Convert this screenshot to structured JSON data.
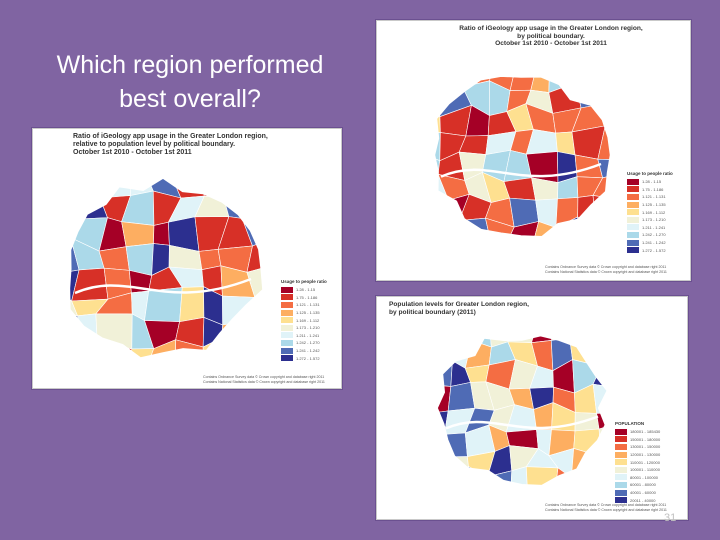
{
  "slide": {
    "title": "Which region performed best overall?",
    "background": "#8064a2",
    "number": "31"
  },
  "figures": [
    {
      "id": "left",
      "title": "Ratio of iGeology app usage in the Greater London region,\nrelative to population level by political boundary.\nOctober 1st 2010 - October 1st 2011",
      "legend_title": "Usage to people ratio",
      "legend": [
        {
          "label": "1.28 - 1.15",
          "color": "#a50026"
        },
        {
          "label": "1.75 - 1.186",
          "color": "#d73027"
        },
        {
          "label": "1.121 - 1.131",
          "color": "#f46d43"
        },
        {
          "label": "1.125 - 1.135",
          "color": "#fdae61"
        },
        {
          "label": "1.169 - 1.112",
          "color": "#fee090"
        },
        {
          "label": "1.173 - 1.210",
          "color": "#f1f1d8"
        },
        {
          "label": "1.211 - 1.241",
          "color": "#e0f3f8"
        },
        {
          "label": "1.242 - 1.270",
          "color": "#abd9e9"
        },
        {
          "label": "1.241 - 1.242",
          "color": "#4f6bb5"
        },
        {
          "label": "1.272 - 1.572",
          "color": "#2c2f8f"
        }
      ],
      "credits": "Contains Ordnance Survey data © Crown copyright and database right 2011\nContains National Statistics data © Crown copyright and database right 2011"
    },
    {
      "id": "top-right",
      "title": "Ratio of iGeology app usage in the Greater London region,\nby political boundary.\nOctober 1st 2010 - October 1st 2011",
      "legend_title": "Usage to people ratio",
      "legend": [
        {
          "label": "1.28 - 1.15",
          "color": "#a50026"
        },
        {
          "label": "1.75 - 1.186",
          "color": "#d73027"
        },
        {
          "label": "1.121 - 1.131",
          "color": "#f46d43"
        },
        {
          "label": "1.125 - 1.135",
          "color": "#fdae61"
        },
        {
          "label": "1.169 - 1.112",
          "color": "#fee090"
        },
        {
          "label": "1.173 - 1.210",
          "color": "#f1f1d8"
        },
        {
          "label": "1.211 - 1.241",
          "color": "#e0f3f8"
        },
        {
          "label": "1.242 - 1.270",
          "color": "#abd9e9"
        },
        {
          "label": "1.241 - 1.242",
          "color": "#4f6bb5"
        },
        {
          "label": "1.272 - 1.572",
          "color": "#2c2f8f"
        }
      ],
      "credits": "Contains Ordnance Survey data © Crown copyright and database right 2011\nContains National Statistics data © Crown copyright and database right 2011"
    },
    {
      "id": "bottom-right",
      "title": "Population levels for Greater London region,\nby political boundary (2011)",
      "legend_title": "POPULATION",
      "legend": [
        {
          "label": "180001 - 185430",
          "color": "#a50026"
        },
        {
          "label": "150001 - 180000",
          "color": "#d73027"
        },
        {
          "label": "130001 - 150000",
          "color": "#f46d43"
        },
        {
          "label": "120001 - 130000",
          "color": "#fdae61"
        },
        {
          "label": "110001 - 120000",
          "color": "#fee090"
        },
        {
          "label": "100001 - 110000",
          "color": "#f1f1d8"
        },
        {
          "label": "80001 - 100000",
          "color": "#e0f3f8"
        },
        {
          "label": "60001 - 80000",
          "color": "#abd9e9"
        },
        {
          "label": "40001 - 60000",
          "color": "#4f6bb5"
        },
        {
          "label": "20011 - 40000",
          "color": "#2c2f8f"
        }
      ],
      "credits": "Contains Ordnance Survey data © Crown copyright and database right 2011\nContains National Statistics data © Crown copyright and database right 2011"
    }
  ]
}
